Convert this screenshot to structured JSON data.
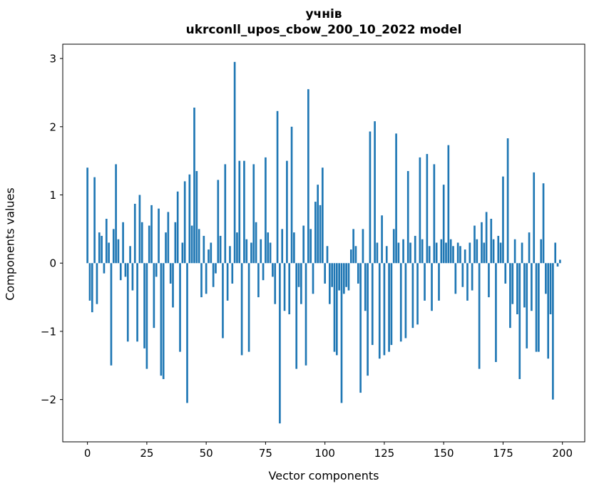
{
  "figure": {
    "title_line1": "учнів",
    "title_line2": "ukrconll_upos_cbow_200_10_2022 model",
    "xlabel": "Vector components",
    "ylabel": "Components values"
  },
  "chart_data": {
    "type": "bar",
    "title": "учнів — ukrconll_upos_cbow_200_10_2022 model",
    "xlabel": "Vector components",
    "ylabel": "Components values",
    "legend": "none",
    "grid": false,
    "bar_color": "#1f77b4",
    "xlim": [
      -10.4,
      209.4
    ],
    "ylim": [
      -2.62,
      3.21
    ],
    "xticks": [
      0,
      25,
      50,
      75,
      100,
      125,
      150,
      175,
      200
    ],
    "yticks": [
      -2,
      -1,
      0,
      1,
      2,
      3
    ],
    "x_start": 0,
    "values": [
      1.4,
      -0.55,
      -0.72,
      1.26,
      -0.6,
      0.45,
      0.4,
      -0.15,
      0.65,
      0.3,
      -1.5,
      0.5,
      1.45,
      0.35,
      -0.25,
      0.6,
      -0.2,
      -1.15,
      0.25,
      -0.4,
      0.87,
      -1.15,
      1.0,
      0.6,
      -1.25,
      -1.55,
      0.55,
      0.85,
      -0.95,
      -0.2,
      0.8,
      -1.65,
      -1.7,
      0.45,
      0.75,
      -0.3,
      -0.65,
      0.6,
      1.05,
      -1.3,
      0.3,
      1.2,
      -2.05,
      1.3,
      0.55,
      2.28,
      1.35,
      0.5,
      -0.5,
      0.4,
      -0.45,
      0.2,
      0.3,
      -0.35,
      -0.15,
      1.22,
      0.4,
      -1.1,
      1.45,
      -0.55,
      0.25,
      -0.3,
      2.95,
      0.45,
      1.5,
      -1.35,
      1.5,
      0.35,
      -1.3,
      0.3,
      1.45,
      0.6,
      -0.5,
      0.35,
      -0.25,
      1.55,
      0.45,
      0.3,
      -0.2,
      -0.6,
      2.23,
      -2.35,
      0.5,
      -0.7,
      1.5,
      -0.75,
      2.0,
      0.45,
      -1.55,
      -0.35,
      -0.6,
      0.55,
      -1.5,
      2.55,
      0.5,
      -0.45,
      0.9,
      1.15,
      0.85,
      1.4,
      -0.3,
      0.25,
      -0.6,
      -0.35,
      -1.3,
      -1.35,
      -0.4,
      -2.05,
      -0.45,
      -0.35,
      -0.4,
      0.2,
      0.5,
      0.25,
      -0.3,
      -1.9,
      0.5,
      -0.7,
      -1.65,
      1.93,
      -1.2,
      2.08,
      0.3,
      -1.4,
      0.7,
      -1.35,
      0.25,
      -1.3,
      -1.2,
      0.5,
      1.9,
      0.3,
      -1.15,
      0.35,
      -1.1,
      1.35,
      0.3,
      -0.95,
      0.4,
      -0.9,
      1.55,
      0.35,
      -0.55,
      1.6,
      0.25,
      -0.7,
      1.45,
      0.3,
      -0.55,
      0.35,
      1.15,
      0.3,
      1.73,
      0.35,
      0.25,
      -0.45,
      0.3,
      0.25,
      -0.35,
      0.2,
      -0.55,
      0.3,
      -0.4,
      0.55,
      0.35,
      -1.55,
      0.6,
      0.3,
      0.75,
      -0.5,
      0.65,
      0.35,
      -1.45,
      0.4,
      0.3,
      1.27,
      -0.3,
      1.83,
      -0.95,
      -0.6,
      0.35,
      -0.75,
      -1.7,
      0.3,
      -0.65,
      -1.25,
      0.45,
      -0.7,
      1.33,
      -1.3,
      -1.3,
      0.35,
      1.17,
      -0.45,
      -1.4,
      -0.75,
      -2.0,
      0.3,
      -0.05,
      0.05
    ]
  }
}
